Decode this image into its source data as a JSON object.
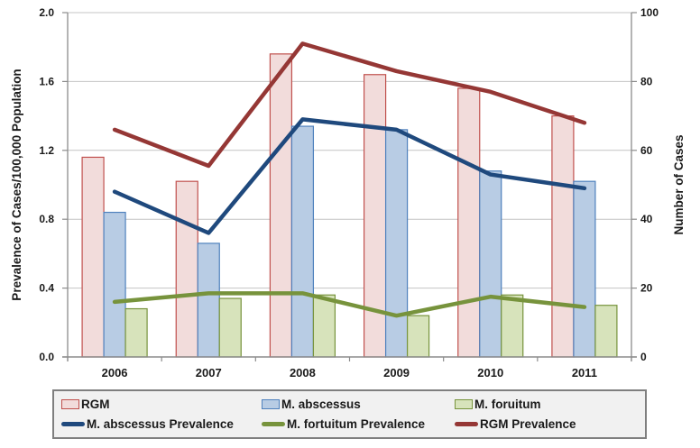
{
  "chart_data": {
    "type": "bar+line combo",
    "title": "",
    "categories": [
      "2006",
      "2007",
      "2008",
      "2009",
      "2010",
      "2011"
    ],
    "bar_series": [
      {
        "name": "RGM",
        "axis": "right",
        "values": [
          58,
          51,
          88,
          82,
          78,
          70
        ],
        "fill": "#F2DCDB",
        "border": "#C0504D"
      },
      {
        "name": "M. abscessus",
        "axis": "right",
        "values": [
          42,
          33,
          67,
          66,
          54,
          51
        ],
        "fill": "#B8CCE4",
        "border": "#4F81BD"
      },
      {
        "name": "M. foruitum",
        "axis": "right",
        "values": [
          14,
          17,
          18,
          12,
          18,
          15
        ],
        "fill": "#D7E3BB",
        "border": "#77933C"
      }
    ],
    "line_series": [
      {
        "name": "M. abscessus Prevalence",
        "axis": "left",
        "values": [
          0.96,
          0.72,
          1.38,
          1.32,
          1.06,
          0.98
        ],
        "color": "#1F497D"
      },
      {
        "name": "M. fortuitum Prevalence",
        "axis": "left",
        "values": [
          0.32,
          0.37,
          0.37,
          0.24,
          0.35,
          0.29
        ],
        "color": "#77933C"
      },
      {
        "name": "RGM Prevalence",
        "axis": "left",
        "values": [
          1.32,
          1.11,
          1.82,
          1.66,
          1.54,
          1.36
        ],
        "color": "#953735"
      }
    ],
    "left_axis": {
      "title": "Prevalence of Cases/100,000 Population",
      "ticks": [
        "0.0",
        "0.4",
        "0.8",
        "1.2",
        "1.6",
        "2.0"
      ],
      "min": 0,
      "max": 2
    },
    "right_axis": {
      "title": "Number of Cases",
      "ticks": [
        "0",
        "20",
        "40",
        "60",
        "80",
        "100"
      ],
      "min": 0,
      "max": 100
    },
    "grid": true,
    "legend_position": "bottom",
    "legend_rows": [
      [
        "RGM",
        "M. abscessus",
        "M. foruitum"
      ],
      [
        "M. abscessus Prevalence",
        "M. fortuitum Prevalence",
        "RGM Prevalence"
      ]
    ]
  },
  "colors": {
    "gridline": "#C4C4C4",
    "axis_line": "#8C8C8C",
    "legend_background": "#F1F1F1",
    "legend_border": "#7F7F7F",
    "text": "#1A1A1A"
  }
}
